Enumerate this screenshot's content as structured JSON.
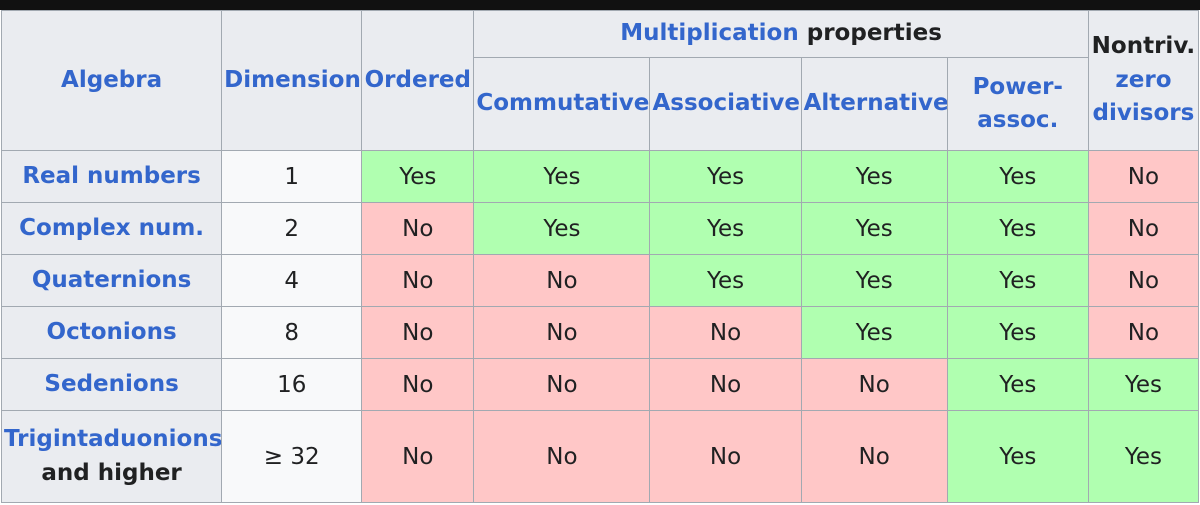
{
  "header": {
    "algebra": "Algebra",
    "dimension": "Dimension",
    "ordered": "Ordered",
    "multiplication": "Multiplication",
    "properties": "properties",
    "nontriv": "Nontriv.",
    "zero_divisors": "zero divisors",
    "commutative": "Commutative",
    "associative": "Associative",
    "alternative": "Alternative",
    "power_assoc": "Power-assoc."
  },
  "rows": [
    {
      "name": "Real numbers",
      "dimension": 1,
      "cells": [
        "Yes",
        "Yes",
        "Yes",
        "Yes",
        "Yes",
        "No"
      ]
    },
    {
      "name": "Complex num.",
      "dimension": 2,
      "cells": [
        "No",
        "Yes",
        "Yes",
        "Yes",
        "Yes",
        "No"
      ]
    },
    {
      "name": "Quaternions",
      "dimension": 4,
      "cells": [
        "No",
        "No",
        "Yes",
        "Yes",
        "Yes",
        "No"
      ]
    },
    {
      "name": "Octonions",
      "dimension": 8,
      "cells": [
        "No",
        "No",
        "No",
        "Yes",
        "Yes",
        "No"
      ]
    },
    {
      "name": "Sedenions",
      "dimension": 16,
      "cells": [
        "No",
        "No",
        "No",
        "No",
        "Yes",
        "Yes"
      ]
    },
    {
      "name": "Trigintaduonions",
      "name_note": "and higher",
      "dimension": "≥ 32",
      "cells": [
        "No",
        "No",
        "No",
        "No",
        "Yes",
        "Yes"
      ]
    }
  ]
}
